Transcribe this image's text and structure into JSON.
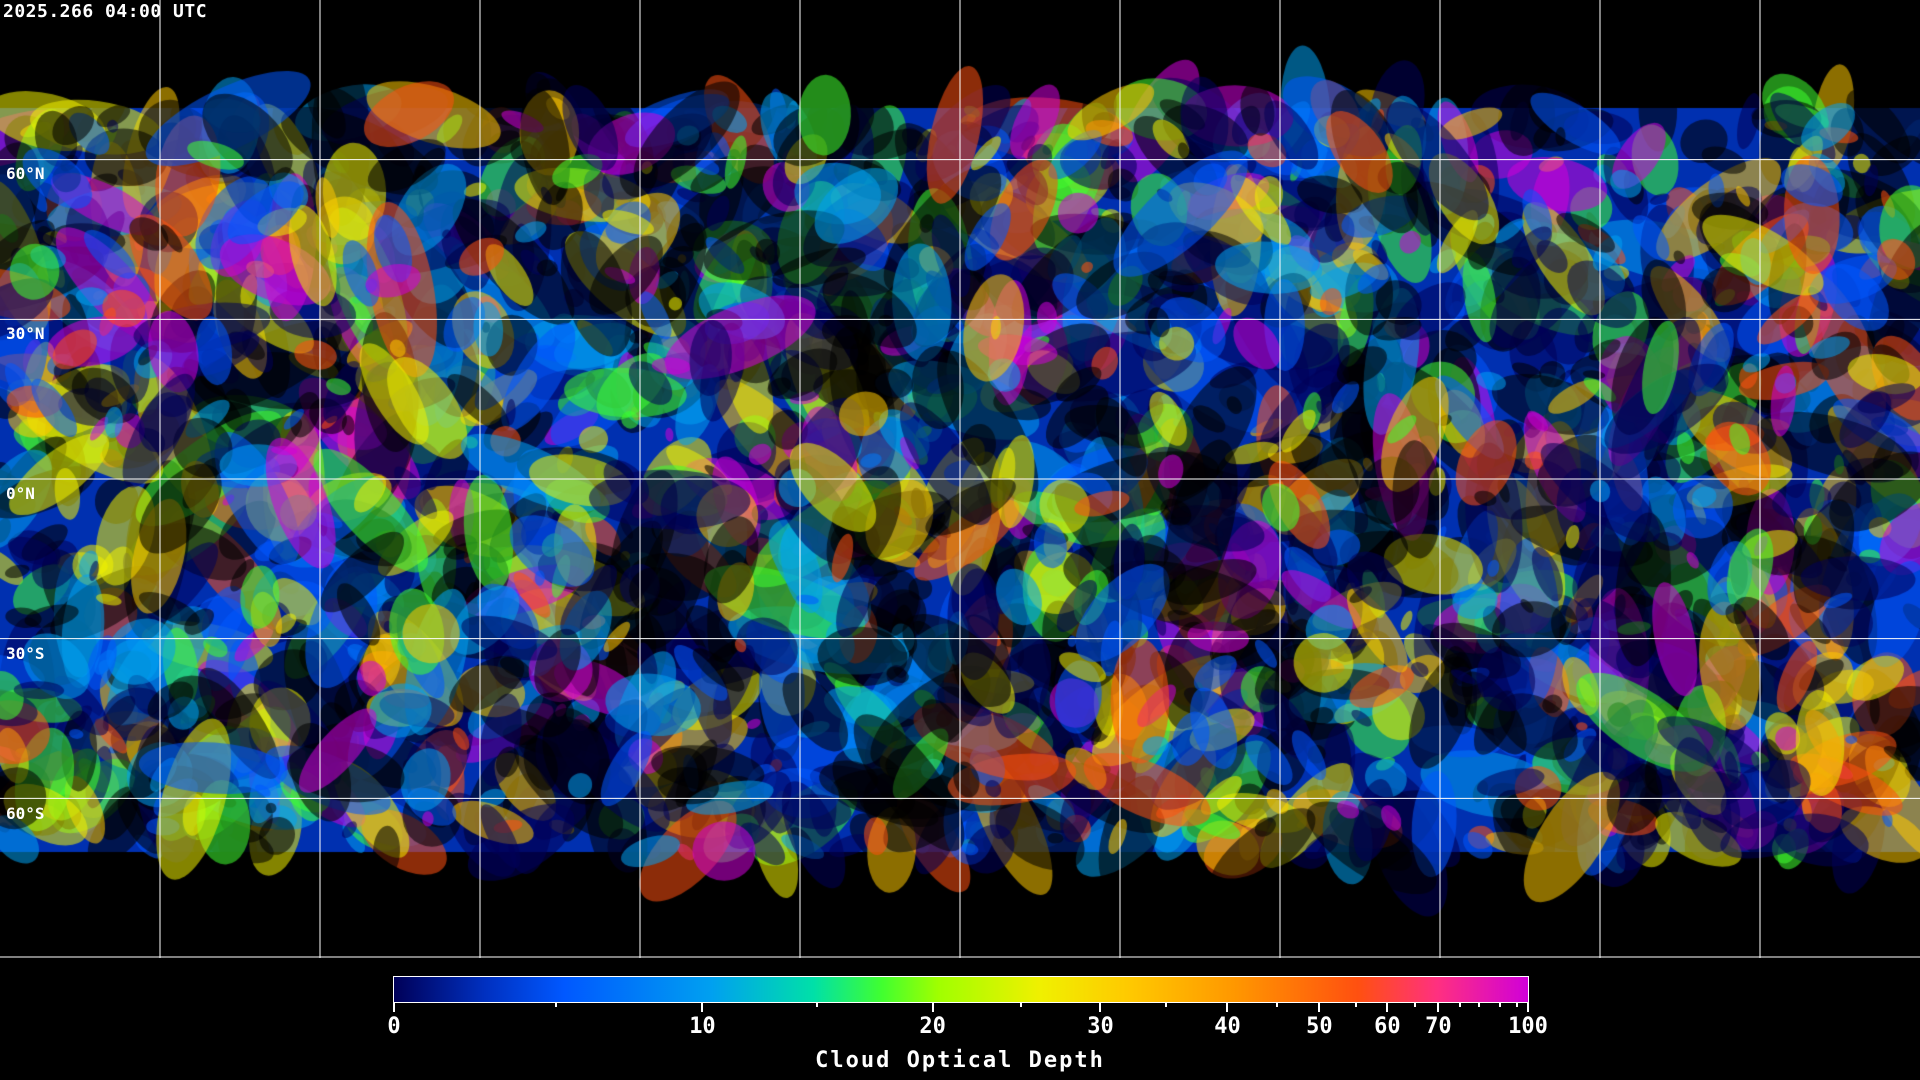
{
  "title": "2025.266 04:00 UTC",
  "map": {
    "projection": "equirectangular",
    "lat_lines": [
      60,
      30,
      0,
      -30,
      -60
    ],
    "lat_labels": [
      "60°N",
      "30°N",
      "0°N",
      "30°S",
      "60°S"
    ],
    "lon_lines": [
      -150,
      -120,
      -90,
      -60,
      -30,
      0,
      30,
      60,
      90,
      120,
      150
    ],
    "grid_color": "#ffffff",
    "coastline_color": "#ffffff"
  },
  "colorbar": {
    "label": "Cloud Optical Depth",
    "range": [
      0,
      100
    ],
    "tick_labels": [
      "0",
      "10",
      "20",
      "30",
      "40",
      "50",
      "60",
      "70",
      "100"
    ],
    "colors": [
      "#000058",
      "#0058ff",
      "#00a0f0",
      "#40ff30",
      "#f0f000",
      "#ffc800",
      "#ff5010",
      "#d000d8"
    ]
  }
}
